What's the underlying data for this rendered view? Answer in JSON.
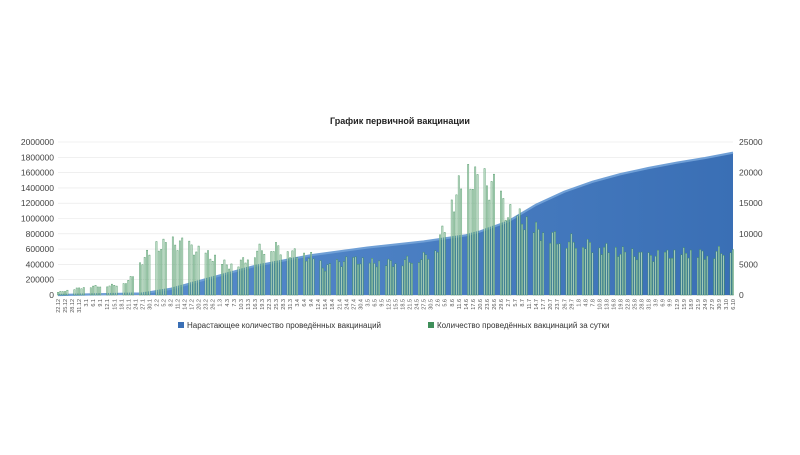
{
  "chart_data": {
    "type": "bar+area",
    "title": "График первичной вакцинации",
    "xlabel": "",
    "ylabel": "",
    "ylim_left": [
      0,
      2000000
    ],
    "ylim_right": [
      0,
      25000
    ],
    "yticks_left": [
      "0",
      "200000",
      "400000",
      "600000",
      "800000",
      "1000000",
      "1200000",
      "1400000",
      "1600000",
      "1800000",
      "2000000"
    ],
    "yticks_right": [
      "0",
      "5000",
      "10000",
      "15000",
      "20000",
      "25000"
    ],
    "x_tick_labels": [
      "22.12",
      "25.12",
      "28.12",
      "31.12",
      "3.1",
      "6.1",
      "9.1",
      "12.1",
      "15.1",
      "18.1",
      "21.1",
      "24.1",
      "27.1",
      "30.1",
      "2.2",
      "5.2",
      "8.2",
      "11.2",
      "14.2",
      "17.2",
      "20.2",
      "23.2",
      "26.2",
      "1.3",
      "4.3",
      "7.3",
      "10.3",
      "13.3",
      "16.3",
      "19.3",
      "22.3",
      "25.3",
      "28.3",
      "31.3",
      "3.4",
      "6.4",
      "9.4",
      "12.4",
      "15.4",
      "18.4",
      "21.4",
      "24.4",
      "27.4",
      "30.4",
      "3.5",
      "6.5",
      "9.5",
      "12.5",
      "15.5",
      "18.5",
      "21.5",
      "24.5",
      "27.5",
      "30.5",
      "2.6",
      "5.6",
      "8.6",
      "11.6",
      "14.6",
      "17.6",
      "20.6",
      "23.6",
      "26.6",
      "29.6",
      "2.7",
      "5.7",
      "8.7",
      "11.7",
      "14.7",
      "17.7",
      "20.7",
      "23.7",
      "26.7",
      "29.7",
      "1.8",
      "4.8",
      "7.8",
      "10.8",
      "13.8",
      "16.8",
      "19.8",
      "22.8",
      "25.8",
      "28.8",
      "31.8",
      "3.9",
      "6.9",
      "9.9",
      "12.9",
      "15.9",
      "18.9",
      "21.9",
      "24.9",
      "27.9",
      "30.9",
      "3.10",
      "6.10"
    ],
    "legend": [
      "Нарастающее количество проведённых вакцинаций",
      "Количество проведённых вакцинаций за сутки"
    ],
    "legend_position": "bottom",
    "colors": {
      "cumulative": "#3a6fb5",
      "cumulative_edge": "#6f9fd6",
      "daily": "#3f8f5a",
      "daily_fill": "#cfe6d4"
    },
    "series": [
      {
        "name": "Нарастающее количество проведённых вакцинаций",
        "axis": "left",
        "type": "area",
        "x_tick_index": [
          0,
          12,
          16,
          20,
          28,
          36,
          44,
          52,
          58,
          60,
          64,
          68,
          72,
          76,
          80,
          84,
          88,
          92,
          96
        ],
        "values": [
          0,
          20000,
          80000,
          180000,
          380000,
          520000,
          620000,
          700000,
          780000,
          830000,
          960000,
          1180000,
          1350000,
          1480000,
          1580000,
          1660000,
          1730000,
          1790000,
          1860000
        ]
      },
      {
        "name": "Количество проведённых вакцинаций за сутки",
        "axis": "right",
        "type": "bar",
        "x_tick_index": [
          0,
          4,
          8,
          10,
          12,
          14,
          16,
          18,
          20,
          22,
          24,
          26,
          28,
          30,
          32,
          34,
          36,
          38,
          40,
          42,
          44,
          46,
          48,
          50,
          52,
          54,
          56,
          58,
          60,
          62,
          64,
          66,
          68,
          70,
          72,
          74,
          76,
          78,
          80,
          82,
          84,
          86,
          88,
          90,
          92,
          94,
          96
        ],
        "values": [
          500,
          1500,
          1800,
          2500,
          6500,
          9000,
          9500,
          9500,
          8000,
          7000,
          5500,
          6000,
          8000,
          9000,
          8500,
          7500,
          7000,
          5000,
          6000,
          6500,
          6000,
          6000,
          6000,
          6500,
          7000,
          9000,
          17000,
          22000,
          21000,
          20000,
          15000,
          14000,
          12000,
          11000,
          10000,
          10000,
          9000,
          8500,
          8000,
          7500,
          7000,
          7500,
          7500,
          8000,
          7500,
          8000,
          9000
        ]
      }
    ]
  }
}
